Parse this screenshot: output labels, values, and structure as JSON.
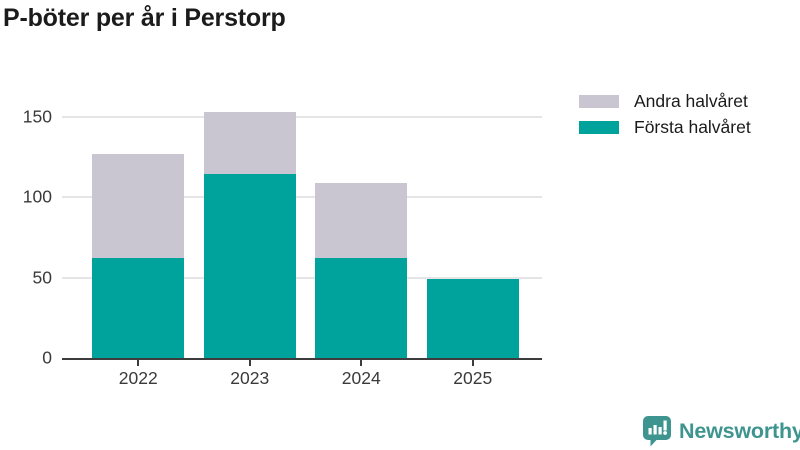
{
  "title": "P-böter per år i Perstorp",
  "legend": [
    {
      "label": "Andra halvåret",
      "color": "#c9c6d1"
    },
    {
      "label": "Första halvåret",
      "color": "#00a39b"
    }
  ],
  "branding": {
    "logo_text": "Newsworthy",
    "logo_color": "#3e948f"
  },
  "chart_data": {
    "type": "bar",
    "stacked": true,
    "title": "P-böter per år i Perstorp",
    "categories": [
      "2022",
      "2023",
      "2024",
      "2025"
    ],
    "series": [
      {
        "name": "Första halvåret",
        "color": "#00a39b",
        "values": [
          62,
          114,
          62,
          49
        ]
      },
      {
        "name": "Andra halvåret",
        "color": "#c9c6d1",
        "values": [
          65,
          39,
          47,
          0
        ]
      }
    ],
    "totals": [
      127,
      153,
      109,
      49
    ],
    "xlabel": "",
    "ylabel": "",
    "yticks": [
      0,
      50,
      100,
      150
    ],
    "ylim": [
      0,
      160
    ],
    "grid": true,
    "legend_position": "top-right",
    "axis_color": "#3c3c3c",
    "grid_color": "#e5e4e7",
    "tick_label_color": "#3a3a3a"
  }
}
